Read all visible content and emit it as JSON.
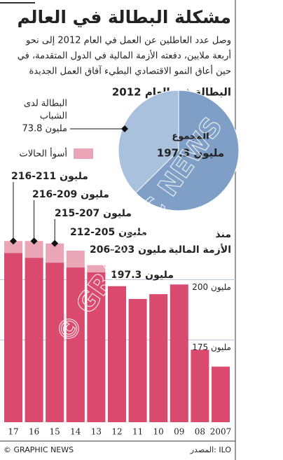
{
  "title": "مشكلة البطالة في العالم",
  "subtitle_lines": [
    "وصل عدد العاطلين عن العمل في العام 2012 إلى نحو",
    "أربعة ملايين، دفعته الأزمة المالية في الدول المتقدمة، في",
    "حين أعاق النمو الاقتصادي البطيء آفاق العمل الجديدة"
  ],
  "chart_data": [
    {
      "type": "pie",
      "title": "البطالة في العام 2012",
      "total": {
        "label_lines": [
          "المجموع"
        ],
        "value": 197.3,
        "value_label": "197.3 مليون",
        "color": "#7f9fc6"
      },
      "part": {
        "label_lines": [
          "البطالة لدى",
          "الشباب"
        ],
        "value": 73.8,
        "value_label": "73.8 مليون",
        "color": "#aac1dd"
      }
    },
    {
      "type": "bar",
      "categories": [
        "2007",
        "08",
        "09",
        "10",
        "11",
        "12",
        "13",
        "14",
        "15",
        "16",
        "17"
      ],
      "values": [
        164,
        171,
        198,
        194,
        192,
        197.3,
        203,
        205,
        207,
        209,
        211
      ],
      "value_labels": [
        null,
        null,
        null,
        null,
        null,
        "197.3 مليون",
        null,
        null,
        null,
        null,
        null
      ],
      "color": "#d94a6e",
      "worst_case": {
        "name": "أسوأ الحالات",
        "color": "#eaa5b6",
        "values": [
          null,
          null,
          null,
          null,
          null,
          null,
          206,
          212,
          215,
          216,
          216
        ]
      },
      "range_labels": [
        null,
        null,
        null,
        null,
        null,
        null,
        "206-203 مليون",
        "212-205 مليون",
        "215-207 مليون",
        "216-209 مليون",
        "216-211 مليون"
      ],
      "annotation_lines": [
        "منذ",
        "الأزمة المالية"
      ],
      "ylim": [
        141,
        222
      ],
      "yticks": [
        {
          "value": 175,
          "label": "175 مليون"
        },
        {
          "value": 200,
          "label": "200 مليون"
        }
      ],
      "grid": true
    }
  ],
  "source": "المصدر: ILO",
  "credit": "© GRAPHIC NEWS"
}
